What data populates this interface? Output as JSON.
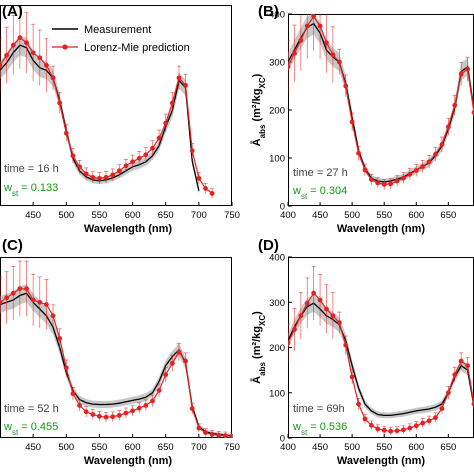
{
  "figure": {
    "legend": {
      "measurement_label": "Measurement",
      "prediction_label": "Lorenz-Mie prediction"
    },
    "colors": {
      "measurement": "#000000",
      "band": "#9a9a9a",
      "prediction": "#e32222",
      "annotation_green": "#119911"
    }
  },
  "chart_data": [
    {
      "panel_label": "(A)",
      "type": "line",
      "xlabel": "Wavelength (nm)",
      "ylabel": "",
      "xlim": [
        400,
        750
      ],
      "ylim": [
        0,
        400
      ],
      "xticks": [
        450,
        500,
        550,
        600,
        650,
        700,
        750
      ],
      "yticks": [],
      "time_text": "time = 16 h",
      "w_prefix": "w",
      "w_sub": "st",
      "w_value": " = 0.133",
      "series": [
        {
          "name": "Measurement",
          "x": [
            400,
            410,
            420,
            430,
            440,
            450,
            460,
            470,
            480,
            490,
            500,
            510,
            520,
            530,
            540,
            550,
            560,
            570,
            580,
            590,
            600,
            610,
            620,
            630,
            640,
            650,
            660,
            670,
            680,
            690,
            700
          ],
          "y": [
            270,
            285,
            305,
            320,
            315,
            290,
            275,
            270,
            255,
            210,
            150,
            95,
            70,
            58,
            52,
            50,
            52,
            56,
            62,
            70,
            78,
            82,
            88,
            100,
            120,
            158,
            190,
            250,
            235,
            90,
            30
          ]
        },
        {
          "name": "Lorenz-Mie prediction",
          "x": [
            400,
            410,
            420,
            430,
            440,
            450,
            460,
            470,
            480,
            490,
            500,
            510,
            520,
            530,
            540,
            550,
            560,
            570,
            580,
            590,
            600,
            610,
            620,
            630,
            640,
            650,
            660,
            670,
            680,
            690,
            700,
            710,
            720
          ],
          "y": [
            280,
            300,
            320,
            335,
            325,
            305,
            295,
            280,
            255,
            205,
            145,
            100,
            78,
            64,
            57,
            55,
            57,
            62,
            70,
            80,
            88,
            95,
            102,
            115,
            135,
            165,
            205,
            255,
            240,
            110,
            55,
            35,
            25
          ]
        }
      ]
    },
    {
      "panel_label": "(B)",
      "type": "line",
      "xlabel": "Wavelength (nm)",
      "ylabel": "Ā_abs (m²/kg_XC)",
      "xlim": [
        400,
        690
      ],
      "ylim": [
        0,
        400
      ],
      "xticks": [
        400,
        450,
        500,
        550,
        600,
        650
      ],
      "yticks": [
        0,
        100,
        200,
        300,
        400
      ],
      "time_text": "time = 27 h",
      "w_prefix": "w",
      "w_sub": "st",
      "w_value": " = 0.304",
      "series": [
        {
          "name": "Measurement",
          "x": [
            400,
            410,
            420,
            430,
            440,
            450,
            460,
            470,
            480,
            490,
            500,
            510,
            520,
            530,
            540,
            550,
            560,
            570,
            580,
            590,
            600,
            610,
            620,
            630,
            640,
            650,
            660,
            670,
            680,
            690
          ],
          "y": [
            300,
            325,
            350,
            372,
            380,
            360,
            325,
            310,
            300,
            255,
            185,
            115,
            78,
            58,
            52,
            50,
            52,
            56,
            60,
            68,
            75,
            82,
            90,
            105,
            125,
            160,
            205,
            280,
            290,
            200
          ]
        },
        {
          "name": "Lorenz-Mie prediction",
          "x": [
            400,
            410,
            420,
            430,
            440,
            450,
            460,
            470,
            480,
            490,
            500,
            510,
            520,
            530,
            540,
            550,
            560,
            570,
            580,
            590,
            600,
            610,
            620,
            630,
            640,
            650,
            660,
            670,
            680,
            690
          ],
          "y": [
            290,
            318,
            345,
            375,
            395,
            375,
            340,
            315,
            300,
            250,
            175,
            110,
            75,
            55,
            48,
            45,
            46,
            52,
            58,
            66,
            74,
            82,
            92,
            108,
            128,
            165,
            210,
            275,
            285,
            195
          ]
        }
      ]
    },
    {
      "panel_label": "(C)",
      "type": "line",
      "xlabel": "Wavelength (nm)",
      "ylabel": "",
      "xlim": [
        400,
        750
      ],
      "ylim": [
        0,
        400
      ],
      "xticks": [
        450,
        500,
        550,
        600,
        650,
        700,
        750
      ],
      "yticks": [],
      "time_text": "time = 52 h",
      "w_prefix": "w",
      "w_sub": "st",
      "w_value": " = 0.455",
      "series": [
        {
          "name": "Measurement",
          "x": [
            400,
            410,
            420,
            430,
            440,
            450,
            460,
            470,
            480,
            490,
            500,
            510,
            520,
            530,
            540,
            550,
            560,
            570,
            580,
            590,
            600,
            610,
            620,
            630,
            640,
            650,
            660,
            670,
            680,
            690,
            700,
            710,
            720,
            730,
            740,
            750
          ],
          "y": [
            295,
            300,
            305,
            315,
            320,
            300,
            285,
            270,
            245,
            200,
            145,
            105,
            85,
            78,
            75,
            74,
            74,
            75,
            77,
            80,
            83,
            86,
            90,
            100,
            125,
            160,
            180,
            195,
            165,
            70,
            25,
            14,
            10,
            8,
            6,
            5
          ]
        },
        {
          "name": "Lorenz-Mie prediction",
          "x": [
            400,
            410,
            420,
            430,
            440,
            450,
            460,
            470,
            480,
            490,
            500,
            510,
            520,
            530,
            540,
            550,
            560,
            570,
            580,
            590,
            600,
            610,
            620,
            630,
            640,
            650,
            660,
            670,
            680,
            690,
            700,
            710,
            720,
            730,
            740,
            750
          ],
          "y": [
            300,
            310,
            320,
            330,
            330,
            305,
            300,
            295,
            270,
            220,
            155,
            98,
            72,
            58,
            52,
            48,
            46,
            47,
            50,
            55,
            60,
            66,
            72,
            82,
            105,
            140,
            165,
            190,
            170,
            65,
            22,
            12,
            8,
            6,
            5,
            4
          ]
        }
      ]
    },
    {
      "panel_label": "(D)",
      "type": "line",
      "xlabel": "Wavelength (nm)",
      "ylabel": "Ā_abs (m²/kg_XC)",
      "xlim": [
        400,
        690
      ],
      "ylim": [
        0,
        400
      ],
      "xticks": [
        400,
        450,
        500,
        550,
        600,
        650
      ],
      "yticks": [
        0,
        100,
        200,
        300,
        400
      ],
      "time_text": "time = 69h",
      "w_prefix": "w",
      "w_sub": "st",
      "w_value": " = 0.536",
      "series": [
        {
          "name": "Measurement",
          "x": [
            400,
            410,
            420,
            430,
            440,
            450,
            460,
            470,
            480,
            490,
            500,
            510,
            520,
            530,
            540,
            550,
            560,
            570,
            580,
            590,
            600,
            610,
            620,
            630,
            640,
            650,
            660,
            670,
            680,
            690
          ],
          "y": [
            215,
            245,
            270,
            290,
            298,
            285,
            270,
            262,
            250,
            215,
            160,
            110,
            75,
            60,
            52,
            50,
            50,
            52,
            54,
            57,
            60,
            62,
            64,
            68,
            75,
            100,
            135,
            160,
            150,
            70
          ]
        },
        {
          "name": "Lorenz-Mie prediction",
          "x": [
            400,
            410,
            420,
            430,
            440,
            450,
            460,
            470,
            480,
            490,
            500,
            510,
            520,
            530,
            540,
            550,
            560,
            570,
            580,
            590,
            600,
            610,
            620,
            630,
            640,
            650,
            660,
            670,
            680,
            690
          ],
          "y": [
            210,
            240,
            270,
            298,
            320,
            305,
            285,
            270,
            255,
            205,
            135,
            75,
            42,
            28,
            20,
            17,
            15,
            16,
            18,
            22,
            27,
            33,
            38,
            45,
            65,
            100,
            140,
            170,
            160,
            75
          ]
        }
      ]
    }
  ]
}
